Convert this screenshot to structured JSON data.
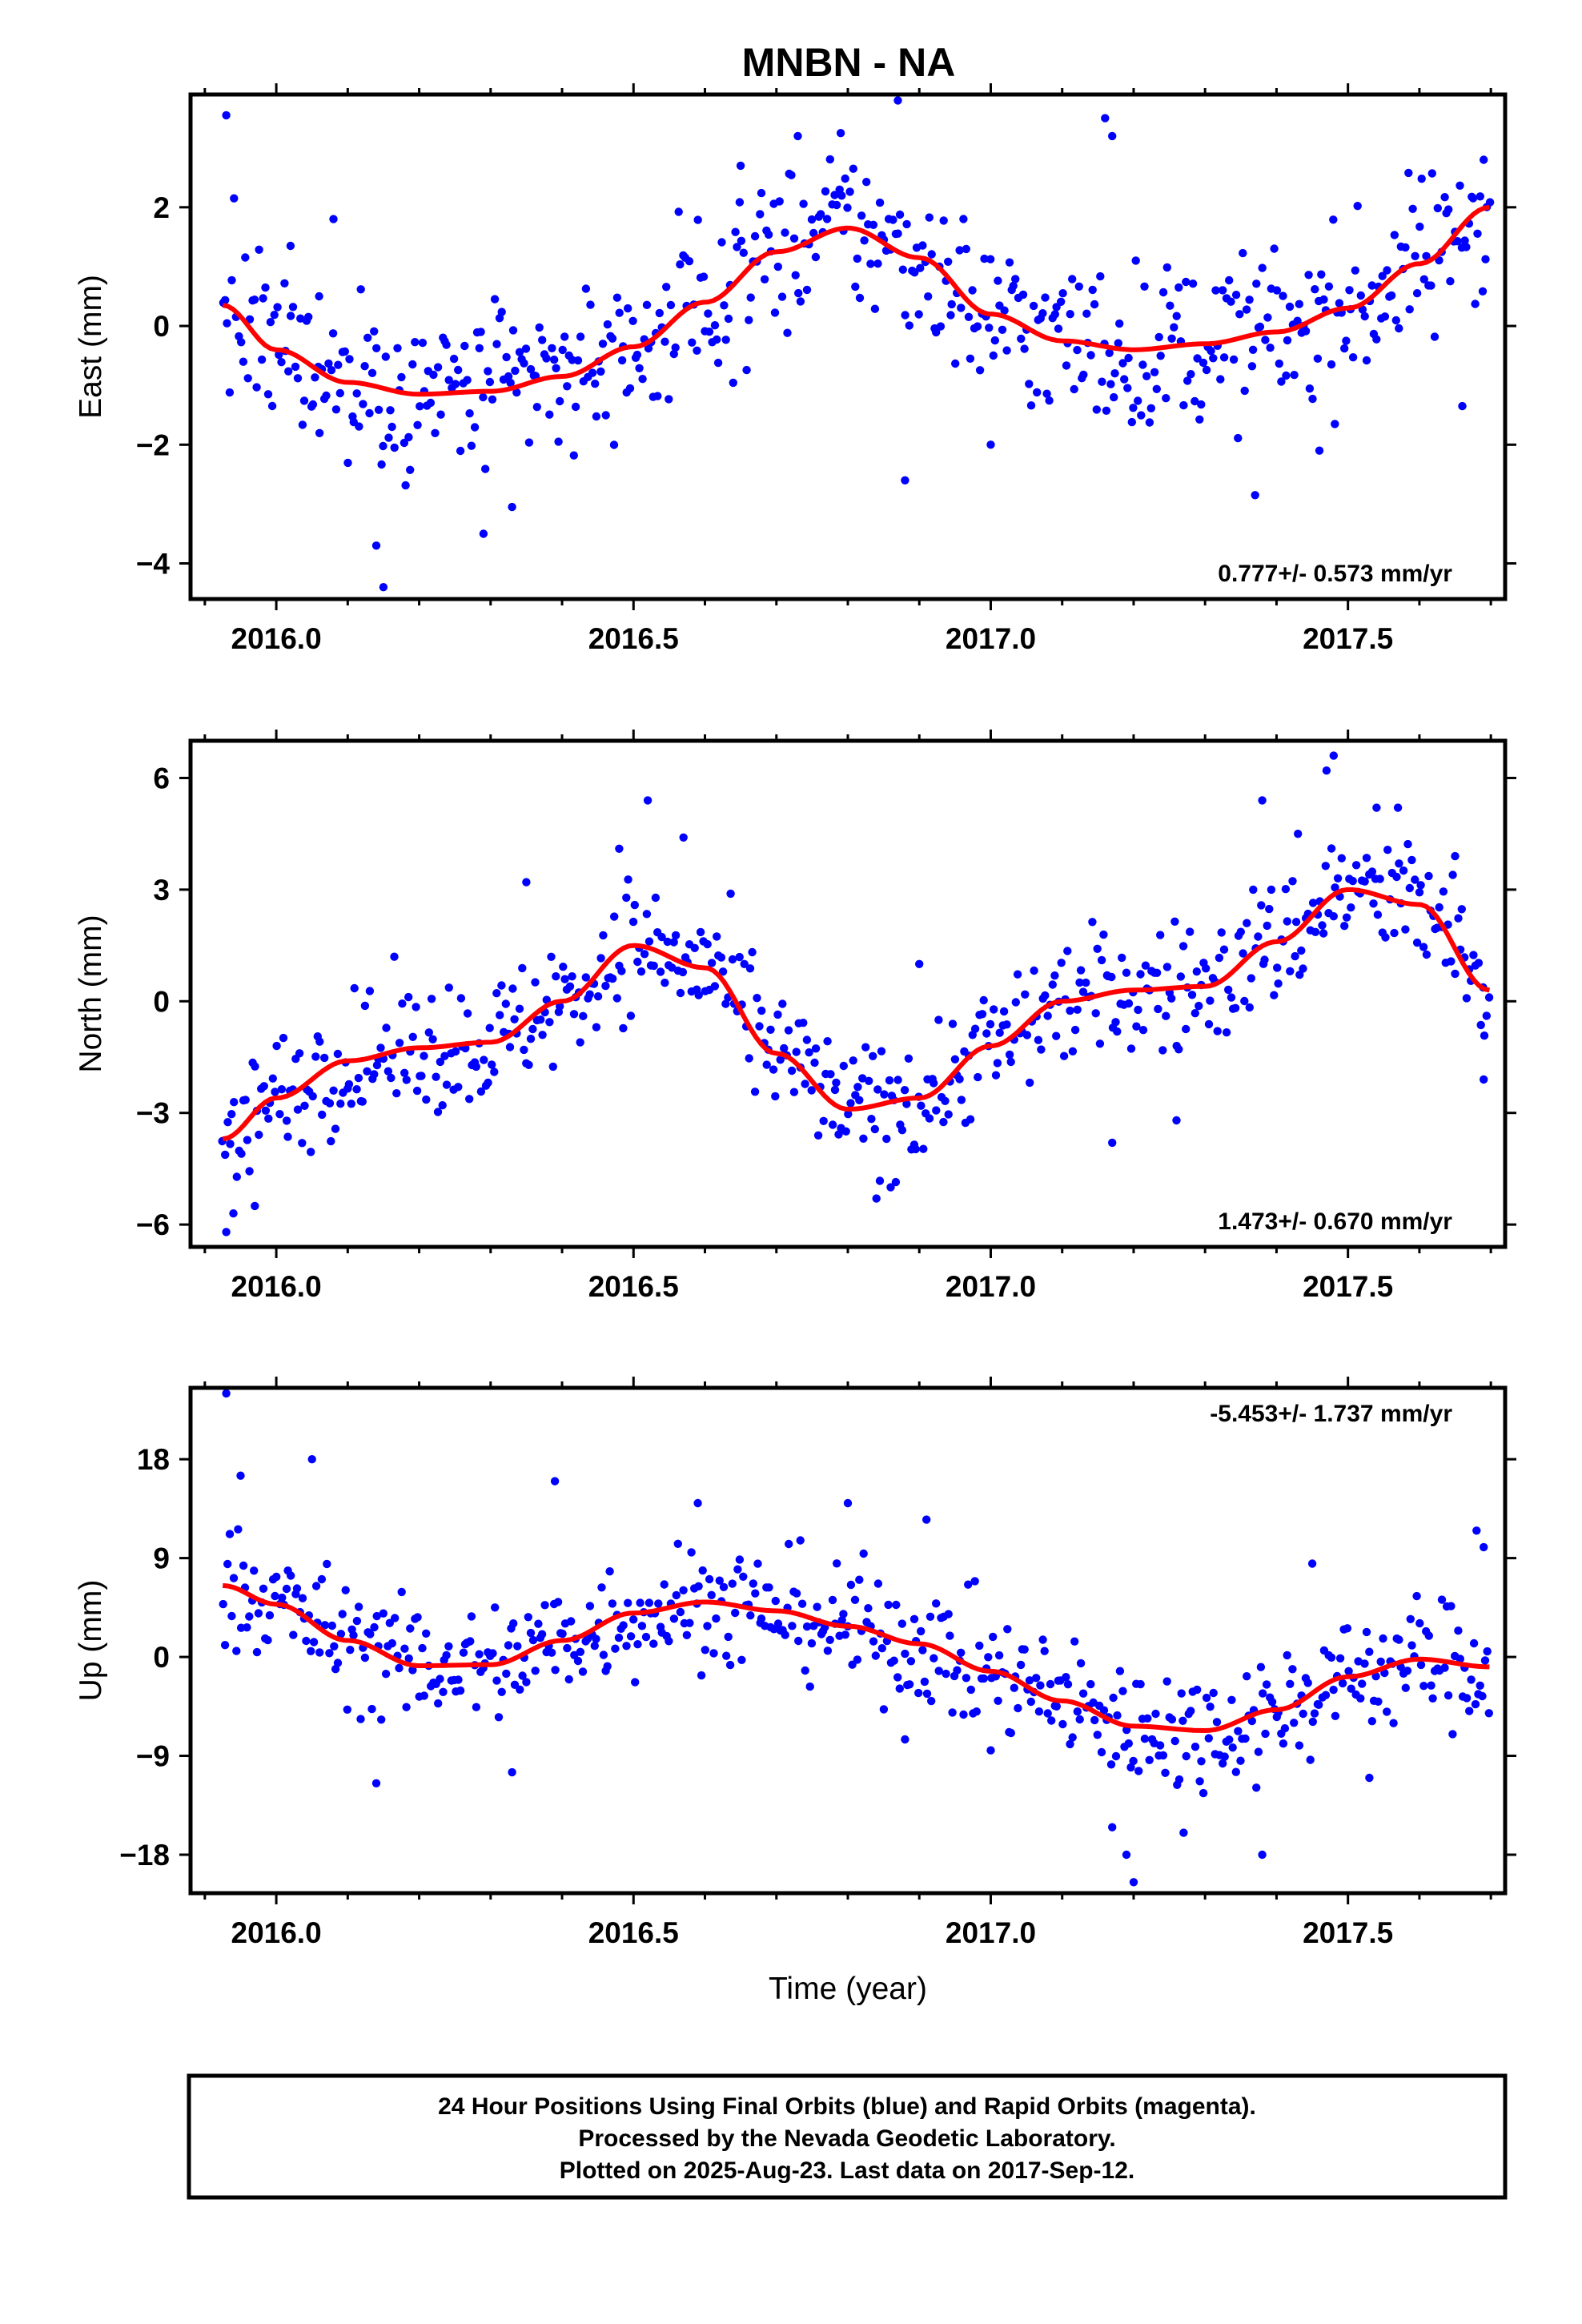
{
  "title": "MNBN - NA",
  "colors": {
    "final_orbits": "#0000ff",
    "rapid_orbits": "#ff00ff",
    "trend": "#ff0000",
    "frame": "#000000"
  },
  "chart_data": [
    {
      "type": "scatter",
      "ylabel": "East (mm)",
      "xlabel": "",
      "xlim": [
        2015.88,
        2017.72
      ],
      "ylim": [
        -4.6,
        3.9
      ],
      "x_ticks": [
        2016.0,
        2016.5,
        2017.0,
        2017.5
      ],
      "x_tick_labels": [
        "2016.0",
        "2016.5",
        "2017.0",
        "2017.5"
      ],
      "y_ticks": [
        -4,
        -2,
        0,
        2
      ],
      "y_tick_labels": [
        "−4",
        "−2",
        "0",
        "2"
      ],
      "rate": "0.777+/- 0.573 mm/yr",
      "rate_position": "bottom-right",
      "series": [
        {
          "role": "trend",
          "x": [
            2015.925,
            2016.0,
            2016.1,
            2016.2,
            2016.3,
            2016.4,
            2016.5,
            2016.6,
            2016.7,
            2016.8,
            2016.9,
            2017.0,
            2017.1,
            2017.2,
            2017.3,
            2017.4,
            2017.5,
            2017.6,
            2017.698
          ],
          "y": [
            0.35,
            -0.4,
            -0.95,
            -1.15,
            -1.1,
            -0.85,
            -0.35,
            0.4,
            1.25,
            1.65,
            1.15,
            0.2,
            -0.25,
            -0.4,
            -0.3,
            -0.1,
            0.3,
            1.05,
            2.0
          ]
        },
        {
          "role": "daily",
          "amp": 1.0,
          "base": [
            2015.925,
            2016.0,
            2016.1,
            2016.2,
            2016.3,
            2016.4,
            2016.5,
            2016.6,
            2016.7,
            2016.8,
            2016.9,
            2017.0,
            2017.1,
            2017.2,
            2017.3,
            2017.4,
            2017.5,
            2017.6,
            2017.698
          ],
          "outliers": [
            [
              2015.93,
              3.55
            ],
            [
              2016.08,
              1.8
            ],
            [
              2016.02,
              1.35
            ],
            [
              2016.15,
              -4.4
            ],
            [
              2016.14,
              -3.7
            ],
            [
              2016.29,
              -3.5
            ],
            [
              2016.33,
              -3.05
            ],
            [
              2016.79,
              3.25
            ],
            [
              2016.87,
              3.8
            ],
            [
              2016.88,
              -2.6
            ],
            [
              2017.0,
              -2.0
            ],
            [
              2017.17,
              3.2
            ],
            [
              2017.16,
              3.5
            ],
            [
              2017.37,
              -2.85
            ],
            [
              2017.46,
              -2.1
            ],
            [
              2017.66,
              -1.35
            ],
            [
              2017.69,
              2.8
            ],
            [
              2016.06,
              0.5
            ],
            [
              2016.65,
              2.7
            ],
            [
              2016.73,
              3.2
            ]
          ]
        }
      ]
    },
    {
      "type": "scatter",
      "ylabel": "North (mm)",
      "xlabel": "",
      "xlim": [
        2015.88,
        2017.72
      ],
      "ylim": [
        -6.6,
        7.0
      ],
      "x_ticks": [
        2016.0,
        2016.5,
        2017.0,
        2017.5
      ],
      "x_tick_labels": [
        "2016.0",
        "2016.5",
        "2017.0",
        "2017.5"
      ],
      "y_ticks": [
        -6,
        -3,
        0,
        3,
        6
      ],
      "y_tick_labels": [
        "−6",
        "−3",
        "0",
        "3",
        "6"
      ],
      "rate": "1.473+/- 0.670 mm/yr",
      "rate_position": "bottom-right",
      "series": [
        {
          "role": "trend",
          "x": [
            2015.925,
            2016.0,
            2016.1,
            2016.2,
            2016.3,
            2016.4,
            2016.5,
            2016.6,
            2016.7,
            2016.8,
            2016.9,
            2017.0,
            2017.1,
            2017.2,
            2017.3,
            2017.4,
            2017.5,
            2017.6,
            2017.698
          ],
          "y": [
            -3.7,
            -2.6,
            -1.6,
            -1.25,
            -1.1,
            0.0,
            1.5,
            0.9,
            -1.4,
            -2.9,
            -2.6,
            -1.2,
            0.0,
            0.3,
            0.4,
            1.6,
            3.0,
            2.6,
            0.3
          ]
        },
        {
          "role": "daily",
          "amp": 1.25,
          "base": [
            2015.925,
            2016.0,
            2016.1,
            2016.2,
            2016.3,
            2016.4,
            2016.5,
            2016.6,
            2016.7,
            2016.8,
            2016.9,
            2017.0,
            2017.1,
            2017.2,
            2017.3,
            2017.4,
            2017.5,
            2017.6,
            2017.698
          ],
          "outliers": [
            [
              2015.93,
              -6.2
            ],
            [
              2015.94,
              -5.7
            ],
            [
              2015.97,
              -5.5
            ],
            [
              2016.52,
              5.4
            ],
            [
              2016.57,
              4.4
            ],
            [
              2017.48,
              6.6
            ],
            [
              2017.47,
              6.2
            ],
            [
              2017.38,
              5.4
            ],
            [
              2017.54,
              5.2
            ],
            [
              2017.57,
              5.2
            ],
            [
              2016.84,
              -5.3
            ],
            [
              2016.86,
              -5.0
            ],
            [
              2016.9,
              1.0
            ],
            [
              2017.26,
              -3.2
            ],
            [
              2017.17,
              -3.8
            ],
            [
              2017.43,
              4.5
            ],
            [
              2016.35,
              3.2
            ],
            [
              2016.48,
              4.1
            ],
            [
              2017.69,
              -2.1
            ],
            [
              2017.65,
              3.9
            ]
          ]
        }
      ]
    },
    {
      "type": "scatter",
      "ylabel": "Up (mm)",
      "xlabel": "Time (year)",
      "xlim": [
        2015.88,
        2017.72
      ],
      "ylim": [
        -21.5,
        24.5
      ],
      "x_ticks": [
        2016.0,
        2016.5,
        2017.0,
        2017.5
      ],
      "x_tick_labels": [
        "2016.0",
        "2016.5",
        "2017.0",
        "2017.5"
      ],
      "y_ticks": [
        -18,
        -9,
        0,
        9,
        18
      ],
      "y_tick_labels": [
        "−18",
        "−9",
        "0",
        "9",
        "18"
      ],
      "rate": "-5.453+/- 1.737 mm/yr",
      "rate_position": "top-right",
      "series": [
        {
          "role": "trend",
          "x": [
            2015.925,
            2016.0,
            2016.1,
            2016.2,
            2016.3,
            2016.4,
            2016.5,
            2016.6,
            2016.7,
            2016.8,
            2016.9,
            2017.0,
            2017.1,
            2017.2,
            2017.3,
            2017.4,
            2017.5,
            2017.6,
            2017.698
          ],
          "y": [
            6.5,
            4.8,
            1.5,
            -0.8,
            -0.7,
            1.5,
            4.0,
            5.0,
            4.2,
            2.8,
            1.2,
            -1.3,
            -4.0,
            -6.3,
            -6.7,
            -4.8,
            -1.8,
            -0.2,
            -0.9
          ]
        },
        {
          "role": "daily",
          "amp": 4.0,
          "base": [
            2015.925,
            2016.0,
            2016.1,
            2016.2,
            2016.3,
            2016.4,
            2016.5,
            2016.6,
            2016.7,
            2016.8,
            2016.9,
            2017.0,
            2017.1,
            2017.2,
            2017.3,
            2017.4,
            2017.5,
            2017.6,
            2017.698
          ],
          "outliers": [
            [
              2015.93,
              24.0
            ],
            [
              2016.05,
              18.0
            ],
            [
              2015.95,
              16.5
            ],
            [
              2016.14,
              -11.5
            ],
            [
              2016.33,
              -10.5
            ],
            [
              2016.39,
              16.0
            ],
            [
              2016.59,
              14.0
            ],
            [
              2016.8,
              14.0
            ],
            [
              2016.91,
              12.5
            ],
            [
              2017.17,
              -15.5
            ],
            [
              2017.19,
              -18.0
            ],
            [
              2017.2,
              -20.5
            ],
            [
              2017.27,
              -16.0
            ],
            [
              2017.38,
              -18.0
            ],
            [
              2017.45,
              8.5
            ],
            [
              2017.68,
              11.5
            ],
            [
              2016.88,
              -7.5
            ],
            [
              2017.0,
              -8.5
            ],
            [
              2017.53,
              -11.0
            ],
            [
              2017.69,
              10.0
            ]
          ]
        }
      ]
    }
  ],
  "footer": {
    "line1": "24 Hour Positions Using Final Orbits (blue) and Rapid Orbits (magenta).",
    "line2": "Processed by the Nevada Geodetic Laboratory.",
    "line3": "Plotted on 2025-Aug-23. Last data on 2017-Sep-12."
  }
}
